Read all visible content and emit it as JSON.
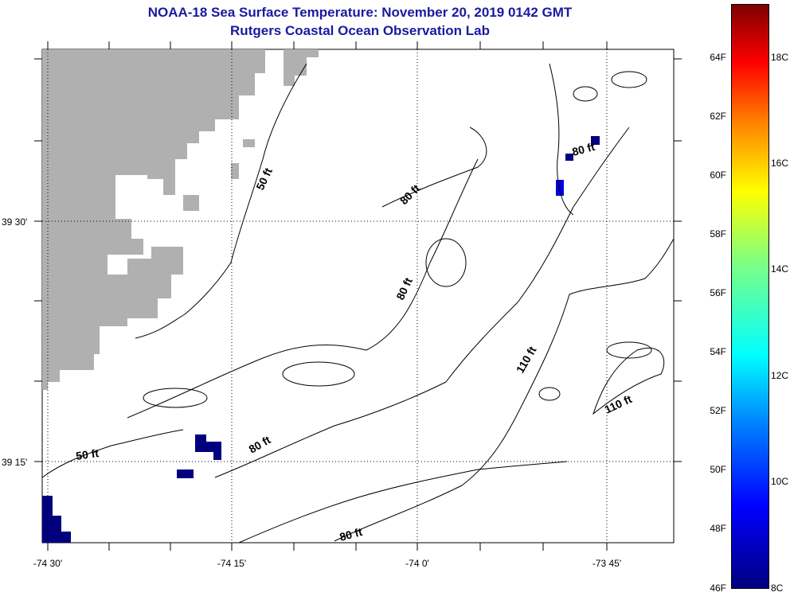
{
  "header": {
    "title": "NOAA-18 Sea Surface Temperature:  November 20, 2019 0142 GMT",
    "subtitle": "Rutgers Coastal Ocean Observation Lab"
  },
  "axes": {
    "lon_labels": [
      "-74 30'",
      "-74 15'",
      "-74 0'",
      "-73 45'"
    ],
    "lat_labels": [
      "39 30'",
      "39 15'"
    ]
  },
  "contour_labels": [
    "50 ft",
    "80 ft",
    "80 ft",
    "80 ft",
    "110 ft",
    "110 ft",
    "50 ft",
    "80 ft",
    "80 ft"
  ],
  "colorbar": {
    "fahrenheit": [
      "64F",
      "62F",
      "60F",
      "58F",
      "56F",
      "54F",
      "52F",
      "50F",
      "48F",
      "46F"
    ],
    "celsius": [
      "18C",
      "16C",
      "14C",
      "12C",
      "10C",
      "8C"
    ]
  },
  "colors": {
    "land": "#b0b0b0",
    "sst_cold": "#00007f",
    "title": "#1a1aa0"
  }
}
